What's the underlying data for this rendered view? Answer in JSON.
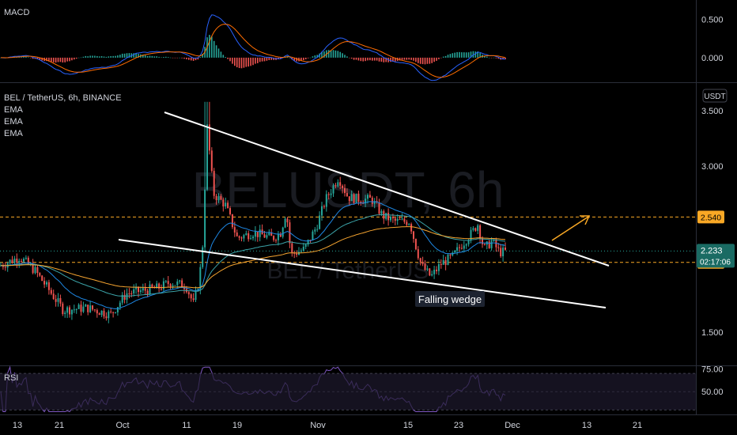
{
  "chart_data": [
    {
      "type": "line",
      "panel": "macd",
      "label": "MACD",
      "y_ticks": [
        "0.500",
        "0.000"
      ],
      "y_tick_values": [
        0.5,
        0.0
      ],
      "ylim": [
        -0.32,
        0.75
      ]
    },
    {
      "type": "candlestick",
      "panel": "price",
      "title": "BEL / TetherUS, 6h, BINANCE",
      "indicators": [
        "EMA",
        "EMA",
        "EMA"
      ],
      "watermark_main": "BELUSDT, 6h",
      "watermark_sub": "BEL / TetherUS",
      "currency_badge": "USDT",
      "y_ticks": [
        "3.500",
        "3.000",
        "1.500"
      ],
      "y_tick_values": [
        3.5,
        3.0,
        1.5
      ],
      "ylim": [
        1.2,
        3.75
      ],
      "levels": [
        {
          "value": 2.54,
          "label": "2.540"
        },
        {
          "value": 2.13,
          "label": "2.130"
        }
      ],
      "last_price": {
        "value": 2.233,
        "label": "2.233",
        "countdown": "02:17:06"
      },
      "annotation": "Falling wedge",
      "colors": {
        "up": "#26a69a",
        "down": "#ef5350",
        "ema_fast": "#1e88e5",
        "ema_slow": "#f7a530",
        "level": "#f9a825"
      }
    },
    {
      "type": "line",
      "panel": "rsi",
      "label": "RSI",
      "y_ticks": [
        "75.00",
        "50.00"
      ],
      "y_tick_values": [
        75,
        50
      ],
      "ylim": [
        25,
        78
      ]
    }
  ],
  "time_axis": {
    "labels": [
      "13",
      "21",
      "Oct",
      "11",
      "19",
      "Nov",
      "15",
      "23",
      "Dec",
      "13",
      "21"
    ]
  }
}
